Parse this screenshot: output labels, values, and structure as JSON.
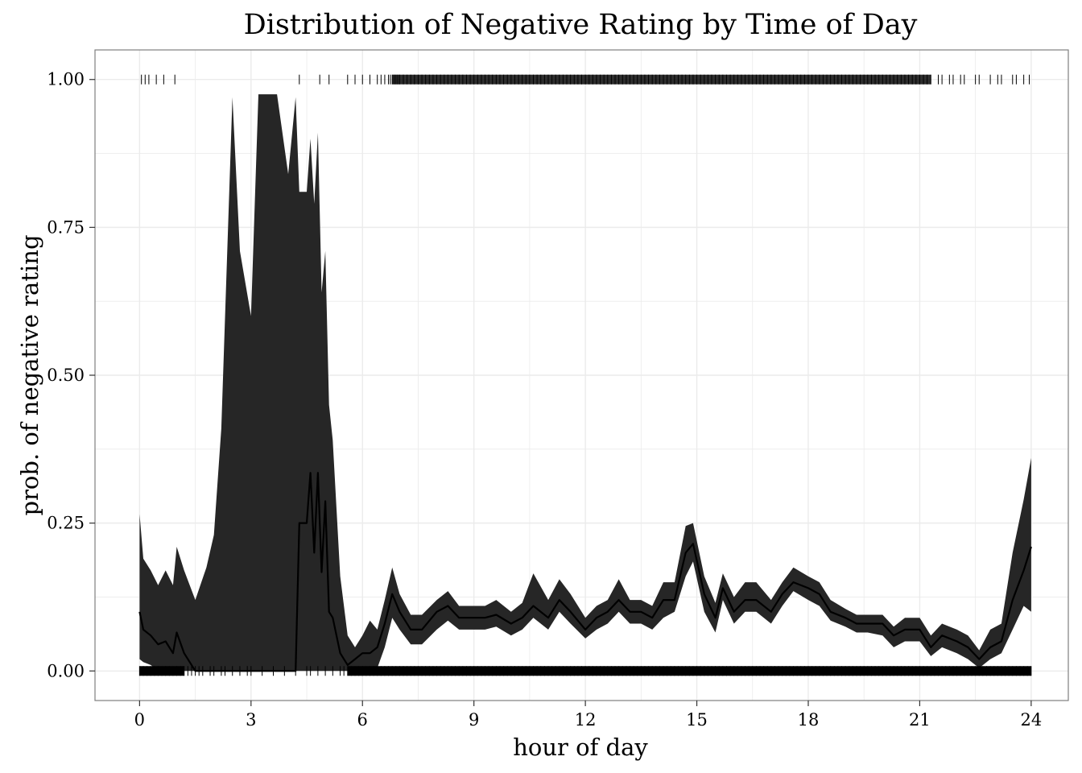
{
  "chart_data": {
    "type": "area",
    "title": "Distribution of Negative Rating by Time of Day",
    "xlabel": "hour of day",
    "ylabel": "prob. of negative rating",
    "xlim": [
      -1.2,
      25
    ],
    "ylim": [
      -0.05,
      1.05
    ],
    "x_ticks": [
      0,
      3,
      6,
      9,
      12,
      15,
      18,
      21,
      24
    ],
    "y_ticks": [
      0,
      0.25,
      0.5,
      0.75,
      1.0
    ],
    "x_tick_labels": [
      "0",
      "3",
      "6",
      "9",
      "12",
      "15",
      "18",
      "21",
      "24"
    ],
    "y_tick_labels": [
      "0.00",
      "0.25",
      "0.50",
      "0.75",
      "1.00"
    ],
    "grid": true,
    "legend": "none",
    "ribbon_color": "#262626",
    "line_color": "#000000",
    "panel_border_color": "#7f7f7f",
    "grid_color": "#ebebeb",
    "series": [
      {
        "x": [
          0,
          0.1,
          0.3,
          0.5,
          0.7,
          0.9,
          1.0,
          1.2,
          1.5,
          1.8,
          2.0,
          2.2,
          2.5,
          2.7,
          3.0,
          3.2,
          3.4,
          3.7,
          4.0,
          4.2,
          4.3,
          4.5,
          4.6,
          4.7,
          4.8,
          4.9,
          5.0,
          5.1,
          5.2,
          5.4,
          5.6,
          5.8,
          6.0,
          6.2,
          6.4,
          6.6,
          6.8,
          7.0,
          7.3,
          7.6,
          8.0,
          8.3,
          8.6,
          9.0,
          9.3,
          9.6,
          10.0,
          10.3,
          10.6,
          11.0,
          11.3,
          11.6,
          12.0,
          12.3,
          12.6,
          12.9,
          13.2,
          13.5,
          13.8,
          14.1,
          14.4,
          14.7,
          14.9,
          15.2,
          15.5,
          15.7,
          16.0,
          16.3,
          16.6,
          17.0,
          17.3,
          17.6,
          18.0,
          18.3,
          18.6,
          19.0,
          19.3,
          19.6,
          20.0,
          20.3,
          20.6,
          21.0,
          21.3,
          21.6,
          22.0,
          22.3,
          22.6,
          22.9,
          23.2,
          23.5,
          23.8,
          24.0
        ],
        "y": [
          0.1,
          0.07,
          0.06,
          0.045,
          0.05,
          0.03,
          0.065,
          0.03,
          0.0,
          0.0,
          0.0,
          0.0,
          0.0,
          0.0,
          0.0,
          0.0,
          0.0,
          0.0,
          0.0,
          0.0,
          0.25,
          0.25,
          0.335,
          0.2,
          0.335,
          0.167,
          0.287,
          0.1,
          0.09,
          0.03,
          0.01,
          0.02,
          0.03,
          0.03,
          0.04,
          0.08,
          0.13,
          0.1,
          0.07,
          0.07,
          0.1,
          0.11,
          0.09,
          0.09,
          0.09,
          0.095,
          0.08,
          0.09,
          0.11,
          0.09,
          0.12,
          0.1,
          0.07,
          0.09,
          0.1,
          0.12,
          0.1,
          0.1,
          0.09,
          0.12,
          0.12,
          0.2,
          0.215,
          0.13,
          0.09,
          0.14,
          0.1,
          0.12,
          0.12,
          0.1,
          0.13,
          0.15,
          0.14,
          0.13,
          0.1,
          0.09,
          0.08,
          0.08,
          0.08,
          0.06,
          0.07,
          0.07,
          0.04,
          0.06,
          0.05,
          0.04,
          0.02,
          0.04,
          0.05,
          0.12,
          0.17,
          0.21
        ],
        "lower": [
          0.02,
          0.015,
          0.01,
          0.0,
          0.0,
          0.0,
          0.005,
          0.0,
          0.0,
          0.0,
          0.0,
          0.0,
          0.0,
          0.0,
          0.0,
          0.0,
          0.0,
          0.0,
          0.0,
          0.0,
          0.0,
          0.0,
          0.0,
          0.0,
          0.0,
          0.0,
          0.0,
          0.0,
          0.0,
          0.0,
          0.0,
          0.0,
          0.0,
          0.0,
          0.005,
          0.04,
          0.09,
          0.07,
          0.045,
          0.045,
          0.07,
          0.085,
          0.07,
          0.07,
          0.07,
          0.075,
          0.06,
          0.07,
          0.09,
          0.07,
          0.1,
          0.08,
          0.055,
          0.07,
          0.08,
          0.1,
          0.08,
          0.08,
          0.07,
          0.09,
          0.1,
          0.16,
          0.185,
          0.1,
          0.065,
          0.12,
          0.08,
          0.1,
          0.1,
          0.08,
          0.11,
          0.135,
          0.12,
          0.11,
          0.085,
          0.075,
          0.065,
          0.065,
          0.06,
          0.04,
          0.05,
          0.05,
          0.025,
          0.04,
          0.03,
          0.02,
          0.005,
          0.02,
          0.03,
          0.07,
          0.11,
          0.1
        ],
        "upper": [
          0.265,
          0.19,
          0.17,
          0.145,
          0.17,
          0.145,
          0.21,
          0.17,
          0.12,
          0.175,
          0.23,
          0.41,
          0.97,
          0.71,
          0.6,
          0.975,
          0.975,
          0.975,
          0.84,
          0.97,
          0.81,
          0.81,
          0.9,
          0.79,
          0.91,
          0.64,
          0.71,
          0.45,
          0.39,
          0.16,
          0.06,
          0.04,
          0.06,
          0.085,
          0.07,
          0.12,
          0.175,
          0.13,
          0.095,
          0.095,
          0.12,
          0.135,
          0.11,
          0.11,
          0.11,
          0.12,
          0.1,
          0.115,
          0.165,
          0.12,
          0.155,
          0.13,
          0.09,
          0.11,
          0.12,
          0.155,
          0.12,
          0.12,
          0.11,
          0.15,
          0.15,
          0.245,
          0.25,
          0.16,
          0.115,
          0.165,
          0.125,
          0.15,
          0.15,
          0.12,
          0.15,
          0.175,
          0.16,
          0.15,
          0.12,
          0.105,
          0.095,
          0.095,
          0.095,
          0.075,
          0.09,
          0.09,
          0.06,
          0.08,
          0.07,
          0.06,
          0.035,
          0.07,
          0.08,
          0.2,
          0.29,
          0.36
        ]
      }
    ],
    "rug_top": {
      "y": 1.0,
      "x": [
        0.05,
        0.15,
        0.25,
        0.45,
        0.65,
        0.95,
        4.3,
        4.85,
        5.1,
        5.6,
        5.8,
        6.0,
        6.2,
        6.4,
        6.5,
        6.6,
        6.7,
        6.75,
        6.8,
        6.85,
        6.9,
        6.95,
        7.0,
        7.1,
        7.2,
        7.3,
        7.4,
        7.5,
        7.6,
        7.7,
        7.8,
        7.9,
        8.0,
        8.1,
        8.2,
        8.3,
        8.4,
        8.5,
        8.6,
        8.7,
        8.8,
        8.9,
        9.0,
        9.1,
        9.2,
        9.3,
        9.4,
        9.5,
        9.6,
        9.7,
        9.8,
        9.9,
        10.0,
        10.1,
        10.2,
        10.3,
        10.4,
        10.5,
        10.6,
        10.7,
        10.8,
        10.9,
        11.0,
        11.1,
        11.2,
        11.3,
        11.4,
        11.5,
        11.6,
        11.7,
        11.8,
        11.9,
        12.0,
        12.1,
        12.2,
        12.3,
        12.4,
        12.5,
        12.6,
        12.7,
        12.8,
        12.9,
        13.0,
        13.1,
        13.2,
        13.3,
        13.4,
        13.5,
        13.6,
        13.7,
        13.8,
        13.9,
        14.0,
        14.1,
        14.2,
        14.3,
        14.4,
        14.5,
        14.6,
        14.7,
        14.8,
        14.9,
        15.0,
        15.1,
        15.2,
        15.3,
        15.4,
        15.5,
        15.6,
        15.7,
        15.8,
        15.9,
        16.0,
        16.1,
        16.2,
        16.3,
        16.4,
        16.5,
        16.6,
        16.7,
        16.8,
        16.9,
        17.0,
        17.1,
        17.2,
        17.3,
        17.4,
        17.5,
        17.6,
        17.7,
        17.8,
        17.9,
        18.0,
        18.1,
        18.2,
        18.3,
        18.4,
        18.5,
        18.6,
        18.7,
        18.8,
        18.9,
        19.0,
        19.1,
        19.2,
        19.3,
        19.4,
        19.5,
        19.6,
        19.7,
        19.8,
        19.9,
        20.0,
        20.1,
        20.2,
        20.3,
        20.4,
        20.5,
        20.6,
        20.7,
        20.8,
        20.9,
        21.0,
        21.1,
        21.2,
        21.3,
        21.5,
        21.6,
        21.8,
        21.9,
        22.1,
        22.2,
        22.5,
        22.6,
        22.9,
        23.1,
        23.2,
        23.5,
        23.6,
        23.8,
        23.95
      ]
    },
    "rug_bottom": {
      "y": 0.0,
      "x": [
        0.0,
        0.1,
        0.2,
        0.3,
        0.4,
        0.5,
        0.6,
        0.7,
        0.8,
        0.9,
        1.0,
        1.1,
        1.2,
        1.3,
        1.4,
        1.5,
        1.6,
        1.7,
        1.9,
        2.0,
        2.2,
        2.3,
        2.5,
        2.7,
        2.9,
        3.0,
        3.3,
        3.6,
        3.9,
        4.2,
        4.5,
        4.6,
        4.8,
        5.0,
        5.2,
        5.4,
        5.5,
        5.6,
        5.7,
        5.8,
        5.9,
        6.0,
        6.1,
        6.2,
        6.3,
        6.4,
        6.5,
        6.6,
        6.7,
        6.8,
        6.9,
        7.0,
        7.1,
        7.2,
        7.3,
        7.4,
        7.5,
        7.6,
        7.7,
        7.8,
        7.9,
        8.0,
        8.1,
        8.2,
        8.3,
        8.4,
        8.5,
        8.6,
        8.7,
        8.8,
        8.9,
        9.0,
        9.1,
        9.2,
        9.3,
        9.4,
        9.5,
        9.6,
        9.7,
        9.8,
        9.9,
        10.0,
        10.1,
        10.2,
        10.3,
        10.4,
        10.5,
        10.6,
        10.7,
        10.8,
        10.9,
        11.0,
        11.1,
        11.2,
        11.3,
        11.4,
        11.5,
        11.6,
        11.7,
        11.8,
        11.9,
        12.0,
        12.1,
        12.2,
        12.3,
        12.4,
        12.5,
        12.6,
        12.7,
        12.8,
        12.9,
        13.0,
        13.1,
        13.2,
        13.3,
        13.4,
        13.5,
        13.6,
        13.7,
        13.8,
        13.9,
        14.0,
        14.1,
        14.2,
        14.3,
        14.4,
        14.5,
        14.6,
        14.7,
        14.8,
        14.9,
        15.0,
        15.1,
        15.2,
        15.3,
        15.4,
        15.5,
        15.6,
        15.7,
        15.8,
        15.9,
        16.0,
        16.1,
        16.2,
        16.3,
        16.4,
        16.5,
        16.6,
        16.7,
        16.8,
        16.9,
        17.0,
        17.1,
        17.2,
        17.3,
        17.4,
        17.5,
        17.6,
        17.7,
        17.8,
        17.9,
        18.0,
        18.1,
        18.2,
        18.3,
        18.4,
        18.5,
        18.6,
        18.7,
        18.8,
        18.9,
        19.0,
        19.1,
        19.2,
        19.3,
        19.4,
        19.5,
        19.6,
        19.7,
        19.8,
        19.9,
        20.0,
        20.1,
        20.2,
        20.3,
        20.4,
        20.5,
        20.6,
        20.7,
        20.8,
        20.9,
        21.0,
        21.1,
        21.2,
        21.3,
        21.4,
        21.5,
        21.6,
        21.7,
        21.8,
        21.9,
        22.0,
        22.1,
        22.2,
        22.3,
        22.4,
        22.5,
        22.6,
        22.7,
        22.8,
        22.9,
        23.0,
        23.1,
        23.2,
        23.3,
        23.4,
        23.5,
        23.6,
        23.7,
        23.8,
        23.9,
        24.0
      ]
    }
  }
}
